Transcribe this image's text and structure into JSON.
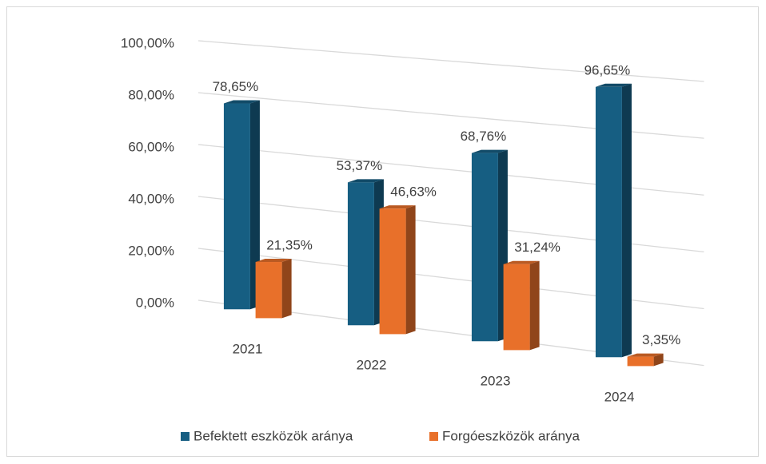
{
  "chart_data": {
    "type": "bar3d",
    "categories": [
      "2021",
      "2022",
      "2023",
      "2024"
    ],
    "series": [
      {
        "name": "Befektett eszközök aránya",
        "color": "#165e82",
        "values": [
          78.65,
          53.37,
          68.76,
          96.65
        ],
        "value_labels": [
          "78,65%",
          "53,37%",
          "68,76%",
          "96,65%"
        ]
      },
      {
        "name": "Forgóeszközök aránya",
        "color": "#e8702a",
        "values": [
          21.35,
          46.63,
          31.24,
          3.35
        ],
        "value_labels": [
          "21,35%",
          "46,63%",
          "31,24%",
          "3,35%"
        ]
      }
    ],
    "ylim": [
      0,
      100
    ],
    "yticks": [
      {
        "value": 0,
        "label": "0,00%"
      },
      {
        "value": 20,
        "label": "20,00%"
      },
      {
        "value": 40,
        "label": "40,00%"
      },
      {
        "value": 60,
        "label": "60,00%"
      },
      {
        "value": 80,
        "label": "80,00%"
      },
      {
        "value": 100,
        "label": "100,00%"
      }
    ],
    "grid": true,
    "legend": "bottom"
  }
}
